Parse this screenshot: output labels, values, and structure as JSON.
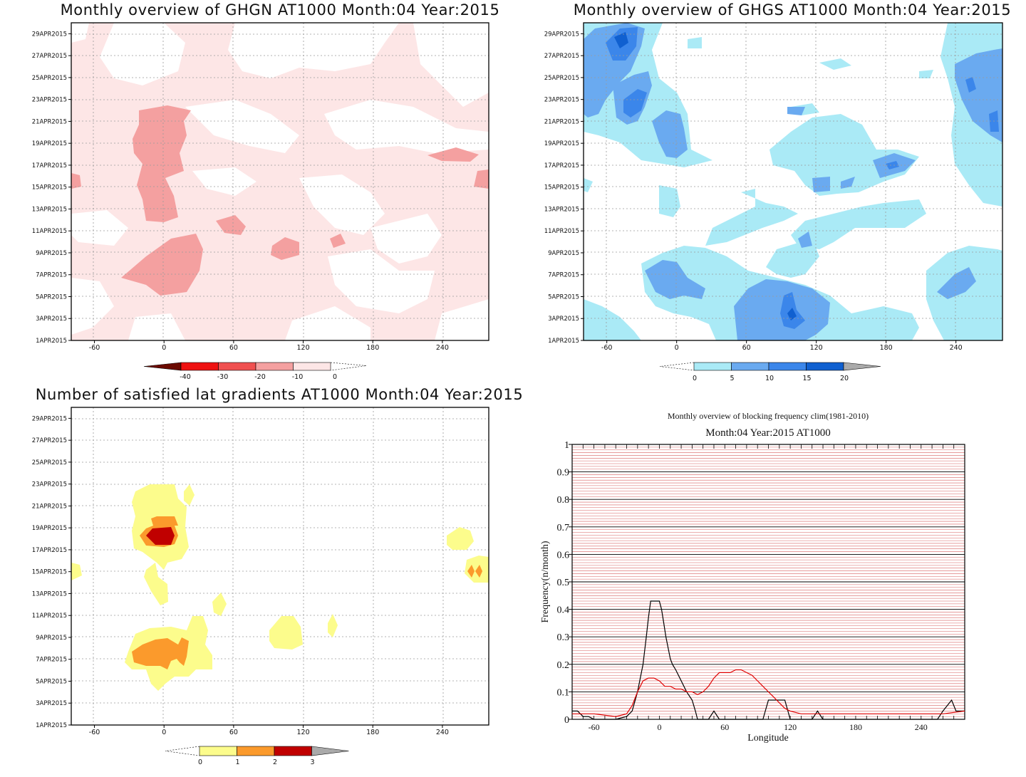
{
  "panels": {
    "ghgn": {
      "title": "Monthly overview of GHGN AT1000 Month:04 Year:2015",
      "colorbar": {
        "labels": [
          "-40",
          "-30",
          "-20",
          "-10",
          "0"
        ],
        "colors": [
          "#6b0a00",
          "#ee1111",
          "#f05050",
          "#f4a0a0",
          "#fde6e6"
        ]
      }
    },
    "ghgs": {
      "title": "Monthly overview of GHGS AT1000 Month:04 Year:2015",
      "colorbar": {
        "labels": [
          "0",
          "5",
          "10",
          "15",
          "20"
        ],
        "colors": [
          "#aaeaf6",
          "#6aaaf0",
          "#3b86ea",
          "#1060d0",
          "#aaaaaa"
        ]
      }
    },
    "grad": {
      "title": "Number of satisfied lat gradients AT1000 Month:04 Year:2015",
      "colorbar": {
        "labels": [
          "0",
          "1",
          "2",
          "3"
        ],
        "colors": [
          "#fcfc8c",
          "#fb9a2c",
          "#c00000",
          "#aaaaaa"
        ]
      }
    },
    "freq": {
      "title": "Monthly overview of blocking frequency clim(1981-2010)",
      "subtitle": "Month:04 Year:2015  AT1000",
      "xlabel": "Longitude",
      "ylabel": "Frequency(n/month)"
    }
  },
  "axes": {
    "x_ticks": [
      "-60",
      "0",
      "60",
      "120",
      "180",
      "240"
    ],
    "date_ticks": [
      "1APR2015",
      "3APR2015",
      "5APR2015",
      "7APR2015",
      "9APR2015",
      "11APR2015",
      "13APR2015",
      "15APR2015",
      "17APR2015",
      "19APR2015",
      "21APR2015",
      "23APR2015",
      "25APR2015",
      "27APR2015",
      "29APR2015"
    ],
    "freq_y_ticks": [
      "0",
      "0.1",
      "0.2",
      "0.3",
      "0.4",
      "0.5",
      "0.6",
      "0.7",
      "0.8",
      "0.9",
      "1"
    ]
  },
  "chart_data": [
    {
      "type": "heatmap",
      "title": "Monthly overview of GHGN AT1000 Month:04 Year:2015",
      "x_range": [
        -80,
        280
      ],
      "y_range": [
        "1APR2015",
        "30APR2015"
      ],
      "levels": [
        -40,
        -30,
        -20,
        -10,
        0
      ],
      "regions": [
        {
          "level": -10,
          "note": "broad light-red coverage across most of the domain",
          "lon": [
            -80,
            280
          ],
          "dates": [
            "1APR2015",
            "30APR2015"
          ]
        },
        {
          "level": -20,
          "lon": [
            -30,
            20
          ],
          "dates": [
            "6APR2015",
            "10APR2015"
          ]
        },
        {
          "level": -20,
          "lon": [
            -25,
            25
          ],
          "dates": [
            "12APR2015",
            "22APR2015"
          ]
        },
        {
          "level": -20,
          "lon": [
            45,
            85
          ],
          "dates": [
            "11APR2015",
            "12APR2015"
          ]
        },
        {
          "level": -20,
          "lon": [
            95,
            120
          ],
          "dates": [
            "9APR2015",
            "10APR2015"
          ]
        },
        {
          "level": -20,
          "lon": [
            235,
            270
          ],
          "dates": [
            "17APR2015",
            "18APR2015"
          ]
        },
        {
          "level": -20,
          "lon": [
            -80,
            -70
          ],
          "dates": [
            "15APR2015",
            "16APR2015"
          ]
        },
        {
          "level": -20,
          "lon": [
            260,
            280
          ],
          "dates": [
            "15APR2015",
            "16APR2015"
          ]
        }
      ]
    },
    {
      "type": "heatmap",
      "title": "Monthly overview of GHGS AT1000 Month:04 Year:2015",
      "x_range": [
        -80,
        280
      ],
      "y_range": [
        "1APR2015",
        "30APR2015"
      ],
      "levels": [
        0,
        5,
        10,
        15,
        20
      ],
      "regions": [
        {
          "level": 5,
          "note": "widespread light-blue coverage",
          "lon": [
            -80,
            280
          ],
          "dates": [
            "1APR2015",
            "30APR2015"
          ]
        },
        {
          "level": 10,
          "lon": [
            -80,
            -20
          ],
          "dates": [
            "21APR2015",
            "30APR2015"
          ]
        },
        {
          "level": 10,
          "lon": [
            -25,
            15
          ],
          "dates": [
            "4APR2015",
            "8APR2015"
          ]
        },
        {
          "level": 10,
          "lon": [
            50,
            130
          ],
          "dates": [
            "1APR2015",
            "6APR2015"
          ]
        },
        {
          "level": 10,
          "lon": [
            230,
            280
          ],
          "dates": [
            "19APR2015",
            "27APR2015"
          ]
        },
        {
          "level": 15,
          "lon": [
            -75,
            -35
          ],
          "dates": [
            "27APR2015",
            "30APR2015"
          ]
        },
        {
          "level": 15,
          "lon": [
            90,
            110
          ],
          "dates": [
            "2APR2015",
            "4APR2015"
          ]
        },
        {
          "level": 20,
          "lon": [
            -65,
            -45
          ],
          "dates": [
            "28APR2015",
            "29APR2015"
          ]
        }
      ]
    },
    {
      "type": "heatmap",
      "title": "Number of satisfied lat gradients AT1000 Month:04 Year:2015",
      "x_range": [
        -80,
        280
      ],
      "y_range": [
        "1APR2015",
        "30APR2015"
      ],
      "levels": [
        0,
        1,
        2,
        3
      ],
      "regions": [
        {
          "level": 1,
          "lon": [
            -25,
            20
          ],
          "dates": [
            "17APR2015",
            "23APR2015"
          ]
        },
        {
          "level": 2,
          "lon": [
            -20,
            15
          ],
          "dates": [
            "18APR2015",
            "20APR2015"
          ]
        },
        {
          "level": 3,
          "lon": [
            -15,
            8
          ],
          "dates": [
            "18APR2015",
            "19APR2015"
          ]
        },
        {
          "level": 1,
          "lon": [
            -30,
            40
          ],
          "dates": [
            "5APR2015",
            "10APR2015"
          ]
        },
        {
          "level": 2,
          "lon": [
            -25,
            20
          ],
          "dates": [
            "6APR2015",
            "8APR2015"
          ]
        },
        {
          "level": 1,
          "lon": [
            -15,
            5
          ],
          "dates": [
            "12APR2015",
            "16APR2015"
          ]
        },
        {
          "level": 1,
          "lon": [
            45,
            55
          ],
          "dates": [
            "11APR2015",
            "12APR2015"
          ]
        },
        {
          "level": 1,
          "lon": [
            90,
            115
          ],
          "dates": [
            "9APR2015",
            "10APR2015"
          ]
        },
        {
          "level": 1,
          "lon": [
            138,
            148
          ],
          "dates": [
            "9APR2015",
            "10APR2015"
          ]
        },
        {
          "level": 1,
          "lon": [
            235,
            262
          ],
          "dates": [
            "17APR2015",
            "19APR2015"
          ]
        },
        {
          "level": 1,
          "lon": [
            258,
            280
          ],
          "dates": [
            "14APR2015",
            "16APR2015"
          ]
        },
        {
          "level": 2,
          "lon": [
            262,
            272
          ],
          "dates": [
            "15APR2015",
            "15APR2015"
          ]
        },
        {
          "level": 1,
          "lon": [
            -80,
            -72
          ],
          "dates": [
            "14APR2015",
            "16APR2015"
          ]
        }
      ]
    },
    {
      "type": "line",
      "title": "Monthly overview of blocking frequency clim(1981-2010)",
      "subtitle": "Month:04 Year:2015  AT1000",
      "xlabel": "Longitude",
      "ylabel": "Frequency(n/month)",
      "xlim": [
        -80,
        280
      ],
      "ylim": [
        0,
        1
      ],
      "series": [
        {
          "color": "#000000",
          "x": [
            -80,
            -75,
            -70,
            -65,
            -60,
            -40,
            -30,
            -25,
            -20,
            -15,
            -12,
            -10,
            -8,
            -5,
            0,
            2,
            4,
            6,
            8,
            10,
            12,
            15,
            20,
            25,
            30,
            33,
            35,
            40,
            45,
            50,
            55,
            60,
            95,
            100,
            115,
            120,
            140,
            145,
            150,
            255,
            260,
            268,
            272,
            275,
            280
          ],
          "y": [
            0.03,
            0.03,
            0.01,
            0.01,
            0.0,
            0.0,
            0.01,
            0.03,
            0.1,
            0.2,
            0.3,
            0.37,
            0.43,
            0.43,
            0.43,
            0.4,
            0.35,
            0.3,
            0.26,
            0.22,
            0.2,
            0.18,
            0.14,
            0.1,
            0.07,
            0.03,
            0.0,
            0.0,
            0.0,
            0.03,
            0.0,
            0.0,
            0.0,
            0.07,
            0.07,
            0.0,
            0.0,
            0.03,
            0.0,
            0.0,
            0.03,
            0.07,
            0.03,
            0.03,
            0.03
          ]
        },
        {
          "color": "#e00000",
          "x": [
            -80,
            -60,
            -40,
            -30,
            -25,
            -20,
            -15,
            -10,
            -5,
            0,
            5,
            10,
            15,
            20,
            25,
            30,
            35,
            40,
            45,
            50,
            55,
            60,
            65,
            70,
            75,
            80,
            85,
            90,
            95,
            100,
            105,
            110,
            115,
            120,
            130,
            140,
            160,
            180,
            200,
            220,
            240,
            260,
            280
          ],
          "y": [
            0.02,
            0.02,
            0.01,
            0.02,
            0.05,
            0.1,
            0.14,
            0.15,
            0.15,
            0.14,
            0.12,
            0.12,
            0.11,
            0.11,
            0.1,
            0.1,
            0.09,
            0.1,
            0.12,
            0.15,
            0.17,
            0.17,
            0.17,
            0.18,
            0.18,
            0.17,
            0.16,
            0.14,
            0.12,
            0.1,
            0.08,
            0.06,
            0.04,
            0.03,
            0.02,
            0.02,
            0.02,
            0.02,
            0.02,
            0.02,
            0.02,
            0.02,
            0.03
          ]
        }
      ]
    }
  ]
}
